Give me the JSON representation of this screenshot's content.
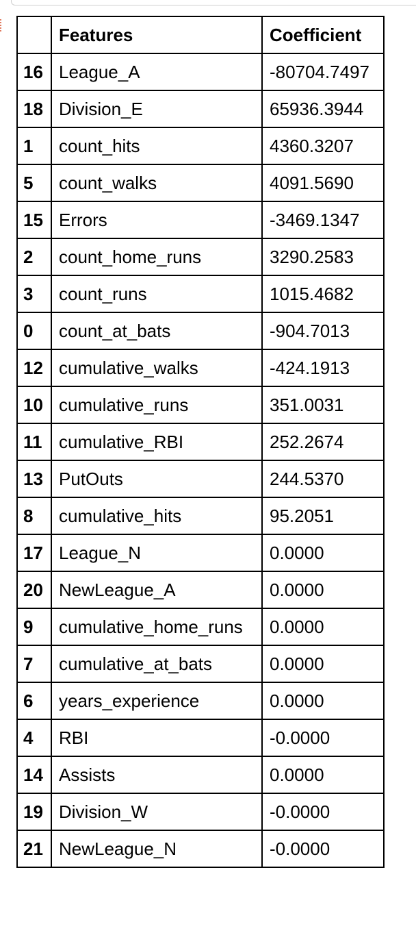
{
  "table": {
    "headers": {
      "index": "",
      "features": "Features",
      "coefficient": "Coefficient"
    },
    "rows": [
      {
        "index": "16",
        "feature": "League_A",
        "coefficient": "-80704.7497"
      },
      {
        "index": "18",
        "feature": "Division_E",
        "coefficient": "65936.3944"
      },
      {
        "index": "1",
        "feature": "count_hits",
        "coefficient": "4360.3207"
      },
      {
        "index": "5",
        "feature": "count_walks",
        "coefficient": "4091.5690"
      },
      {
        "index": "15",
        "feature": "Errors",
        "coefficient": "-3469.1347"
      },
      {
        "index": "2",
        "feature": "count_home_runs",
        "coefficient": "3290.2583"
      },
      {
        "index": "3",
        "feature": "count_runs",
        "coefficient": "1015.4682"
      },
      {
        "index": "0",
        "feature": "count_at_bats",
        "coefficient": "-904.7013"
      },
      {
        "index": "12",
        "feature": "cumulative_walks",
        "coefficient": "-424.1913"
      },
      {
        "index": "10",
        "feature": "cumulative_runs",
        "coefficient": "351.0031"
      },
      {
        "index": "11",
        "feature": "cumulative_RBI",
        "coefficient": "252.2674"
      },
      {
        "index": "13",
        "feature": "PutOuts",
        "coefficient": "244.5370"
      },
      {
        "index": "8",
        "feature": "cumulative_hits",
        "coefficient": "95.2051"
      },
      {
        "index": "17",
        "feature": "League_N",
        "coefficient": "0.0000"
      },
      {
        "index": "20",
        "feature": "NewLeague_A",
        "coefficient": "0.0000"
      },
      {
        "index": "9",
        "feature": "cumulative_home_runs",
        "coefficient": "0.0000"
      },
      {
        "index": "7",
        "feature": "cumulative_at_bats",
        "coefficient": "0.0000"
      },
      {
        "index": "6",
        "feature": "years_experience",
        "coefficient": "0.0000"
      },
      {
        "index": "4",
        "feature": "RBI",
        "coefficient": "-0.0000"
      },
      {
        "index": "14",
        "feature": "Assists",
        "coefficient": "0.0000"
      },
      {
        "index": "19",
        "feature": "Division_W",
        "coefficient": "-0.0000"
      },
      {
        "index": "21",
        "feature": "NewLeague_N",
        "coefficient": "-0.0000"
      }
    ]
  }
}
